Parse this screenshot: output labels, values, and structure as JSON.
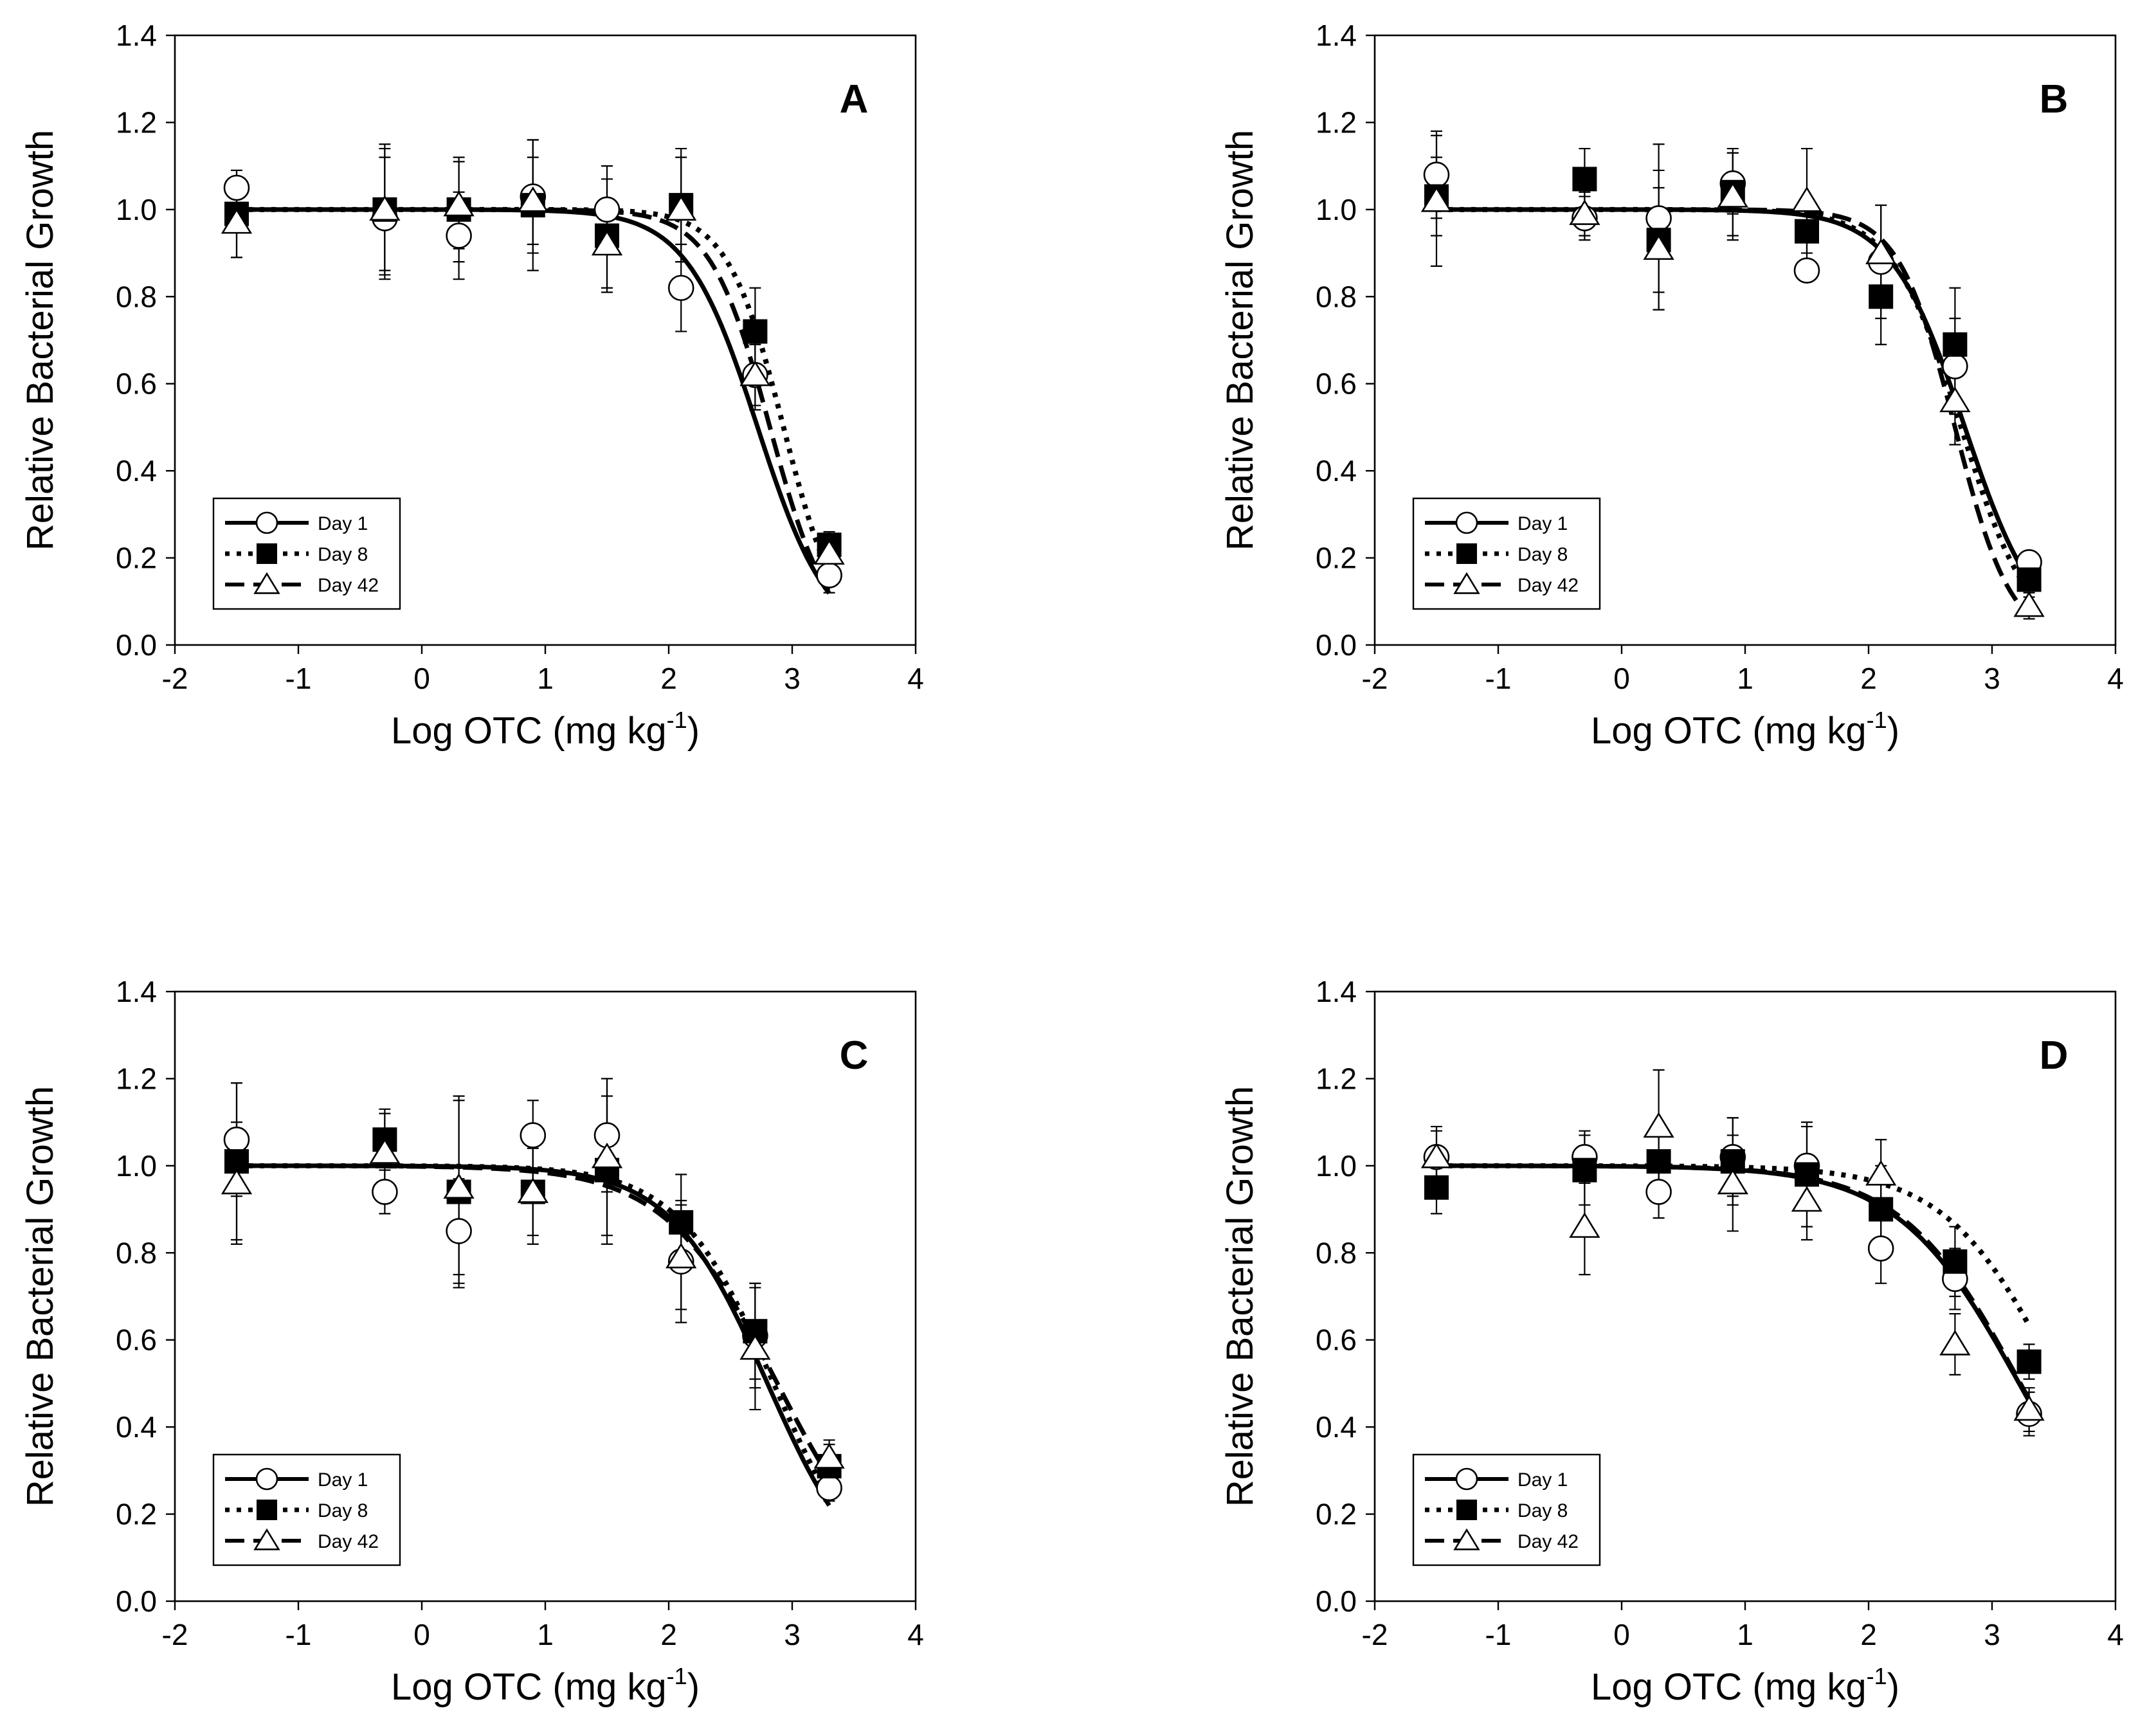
{
  "chart_data": [
    {
      "type": "scatter",
      "panel_label": "A",
      "xlabel": "Log OTC (mg kg",
      "xlabel_superscript": "-1",
      "xlabel_suffix": ")",
      "ylabel": "Relative Bacterial Growth",
      "xlim": [
        -2,
        4
      ],
      "ylim": [
        0.0,
        1.4
      ],
      "xticks": [
        -2,
        -1,
        0,
        1,
        2,
        3,
        4
      ],
      "yticks": [
        "0.0",
        "0.2",
        "0.4",
        "0.6",
        "0.8",
        "1.0",
        "1.2",
        "1.4"
      ],
      "legend_position": "bottom-left",
      "x": [
        -1.5,
        -0.3,
        0.3,
        0.9,
        1.5,
        2.1,
        2.7,
        3.3
      ],
      "series": [
        {
          "name": "Day 1",
          "marker": "circle",
          "line": "solid",
          "values": [
            1.05,
            0.98,
            0.94,
            1.03,
            1.0,
            0.82,
            0.62,
            0.16
          ],
          "errors": [
            0.04,
            0.14,
            0.1,
            0.13,
            0.1,
            0.1,
            0.07,
            0.04
          ],
          "fit": {
            "ec50_log": 2.72,
            "hill": 1.5
          }
        },
        {
          "name": "Day 8",
          "marker": "square",
          "line": "dotted",
          "values": [
            0.99,
            1.0,
            1.0,
            1.01,
            0.94,
            1.01,
            0.72,
            0.23
          ],
          "errors": [
            0.1,
            0.15,
            0.12,
            0.15,
            0.13,
            0.13,
            0.1,
            0.03
          ],
          "fit": {
            "ec50_log": 2.93,
            "hill": 1.9
          }
        },
        {
          "name": "Day 42",
          "marker": "triangle",
          "line": "dashed",
          "values": [
            0.97,
            1.0,
            1.01,
            1.02,
            0.92,
            1.0,
            0.62,
            0.21
          ],
          "errors": [
            0.08,
            0.14,
            0.1,
            0.1,
            0.1,
            0.12,
            0.08,
            0.03
          ],
          "fit": {
            "ec50_log": 2.82,
            "hill": 1.8
          }
        }
      ]
    },
    {
      "type": "scatter",
      "panel_label": "B",
      "xlabel": "Log OTC (mg kg",
      "xlabel_superscript": "-1",
      "xlabel_suffix": ")",
      "ylabel": "Relative Bacterial Growth",
      "xlim": [
        -2,
        4
      ],
      "ylim": [
        0.0,
        1.4
      ],
      "xticks": [
        -2,
        -1,
        0,
        1,
        2,
        3,
        4
      ],
      "yticks": [
        "0.0",
        "0.2",
        "0.4",
        "0.6",
        "0.8",
        "1.0",
        "1.2",
        "1.4"
      ],
      "legend_position": "bottom-left",
      "x": [
        -1.5,
        -0.3,
        0.3,
        0.9,
        1.5,
        2.1,
        2.7,
        3.3
      ],
      "series": [
        {
          "name": "Day 1",
          "marker": "circle",
          "line": "solid",
          "values": [
            1.08,
            0.98,
            0.98,
            1.06,
            0.86,
            0.88,
            0.64,
            0.19
          ],
          "errors": [
            0.1,
            0.05,
            0.17,
            0.07,
            0.02,
            0.13,
            0.11,
            0.02
          ],
          "fit": {
            "ec50_log": 2.78,
            "hill": 1.45
          }
        },
        {
          "name": "Day 8",
          "marker": "square",
          "line": "dotted",
          "values": [
            1.03,
            1.07,
            0.93,
            1.04,
            0.95,
            0.8,
            0.69,
            0.15
          ],
          "errors": [
            0.09,
            0.07,
            0.16,
            0.1,
            0.07,
            0.11,
            0.13,
            0.04
          ],
          "fit": {
            "ec50_log": 2.75,
            "hill": 1.55
          }
        },
        {
          "name": "Day 42",
          "marker": "triangle",
          "line": "dashed",
          "values": [
            1.02,
            0.99,
            0.91,
            1.03,
            1.02,
            0.9,
            0.56,
            0.09
          ],
          "errors": [
            0.15,
            0.05,
            0.14,
            0.1,
            0.12,
            0.11,
            0.1,
            0.03
          ],
          "fit": {
            "ec50_log": 2.7,
            "hill": 1.9
          }
        }
      ]
    },
    {
      "type": "scatter",
      "panel_label": "C",
      "xlabel": "Log OTC (mg kg",
      "xlabel_superscript": "-1",
      "xlabel_suffix": ")",
      "ylabel": "Relative Bacterial Growth",
      "xlim": [
        -2,
        4
      ],
      "ylim": [
        0.0,
        1.4
      ],
      "xticks": [
        -2,
        -1,
        0,
        1,
        2,
        3,
        4
      ],
      "yticks": [
        "0.0",
        "0.2",
        "0.4",
        "0.6",
        "0.8",
        "1.0",
        "1.2",
        "1.4"
      ],
      "legend_position": "bottom-left",
      "x": [
        -1.5,
        -0.3,
        0.3,
        0.9,
        1.5,
        2.1,
        2.7,
        3.3
      ],
      "series": [
        {
          "name": "Day 1",
          "marker": "circle",
          "line": "solid",
          "values": [
            1.06,
            0.94,
            0.85,
            1.07,
            1.07,
            0.78,
            0.61,
            0.26
          ],
          "errors": [
            0.13,
            0.05,
            0.12,
            0.08,
            0.13,
            0.14,
            0.12,
            0.03
          ],
          "fit": {
            "ec50_log": 2.8,
            "hill": 1.1
          }
        },
        {
          "name": "Day 8",
          "marker": "square",
          "line": "dotted",
          "values": [
            1.01,
            1.06,
            0.94,
            0.94,
            0.99,
            0.87,
            0.62,
            0.31
          ],
          "errors": [
            0.18,
            0.06,
            0.22,
            0.12,
            0.17,
            0.11,
            0.11,
            0.05
          ],
          "fit": {
            "ec50_log": 2.85,
            "hill": 1.12
          }
        },
        {
          "name": "Day 42",
          "marker": "triangle",
          "line": "dashed",
          "values": [
            0.96,
            1.03,
            0.95,
            0.94,
            1.02,
            0.79,
            0.58,
            0.33
          ],
          "errors": [
            0.14,
            0.1,
            0.2,
            0.1,
            0.18,
            0.12,
            0.14,
            0.04
          ],
          "fit": {
            "ec50_log": 2.88,
            "hill": 0.95
          }
        }
      ]
    },
    {
      "type": "scatter",
      "panel_label": "D",
      "xlabel": "Log OTC (mg kg",
      "xlabel_superscript": "-1",
      "xlabel_suffix": ")",
      "ylabel": "Relative Bacterial Growth",
      "xlim": [
        -2,
        4
      ],
      "ylim": [
        0.0,
        1.4
      ],
      "xticks": [
        -2,
        -1,
        0,
        1,
        2,
        3,
        4
      ],
      "yticks": [
        "0.0",
        "0.2",
        "0.4",
        "0.6",
        "0.8",
        "1.0",
        "1.2",
        "1.4"
      ],
      "legend_position": "bottom-left",
      "x": [
        -1.5,
        -0.3,
        0.3,
        0.9,
        1.5,
        2.1,
        2.7,
        3.3
      ],
      "series": [
        {
          "name": "Day 1",
          "marker": "circle",
          "line": "solid",
          "values": [
            1.02,
            1.02,
            0.94,
            1.02,
            1.0,
            0.81,
            0.74,
            0.43
          ],
          "errors": [
            0.07,
            0.06,
            0.06,
            0.09,
            0.09,
            0.08,
            0.07,
            0.05
          ],
          "fit": {
            "ec50_log": 3.22,
            "hill": 0.88
          }
        },
        {
          "name": "Day 8",
          "marker": "square",
          "line": "dotted",
          "values": [
            0.95,
            0.99,
            1.01,
            1.01,
            0.98,
            0.9,
            0.78,
            0.55
          ],
          "errors": [
            0.06,
            0.08,
            0.08,
            0.1,
            0.12,
            0.1,
            0.08,
            0.04
          ],
          "fit": {
            "ec50_log": 3.55,
            "hill": 0.95
          }
        },
        {
          "name": "Day 42",
          "marker": "triangle",
          "line": "dashed",
          "values": [
            1.02,
            0.86,
            1.09,
            0.96,
            0.92,
            0.98,
            0.59,
            0.44
          ],
          "errors": [
            0.06,
            0.11,
            0.13,
            0.11,
            0.09,
            0.08,
            0.07,
            0.05
          ],
          "fit": {
            "ec50_log": 3.23,
            "hill": 0.9
          }
        }
      ]
    }
  ]
}
